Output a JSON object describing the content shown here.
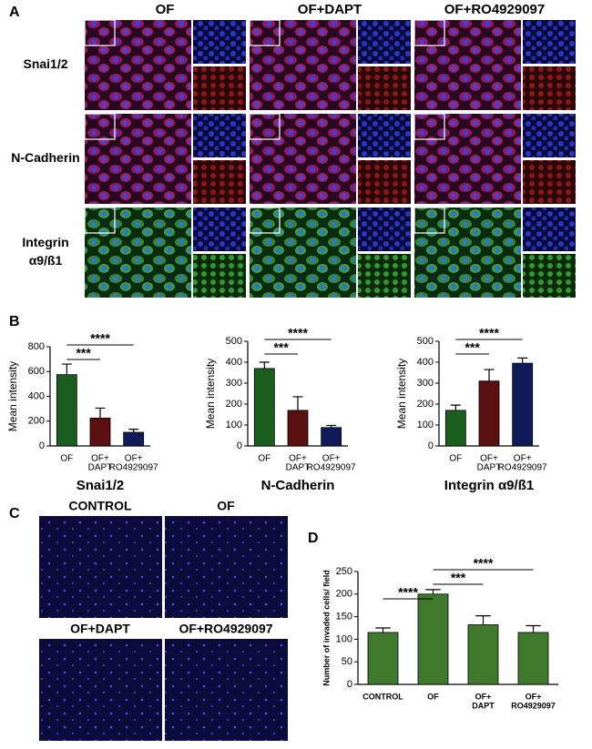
{
  "panels": {
    "a": {
      "label": "A",
      "columns": [
        "OF",
        "OF+DAPT",
        "OF+RO4929097"
      ],
      "rows": [
        [
          "Snai1/2"
        ],
        [
          "N-Cadherin"
        ],
        [
          "Integrin",
          "α9/ß1"
        ]
      ]
    },
    "b": {
      "label": "B"
    },
    "c": {
      "label": "C",
      "images": [
        "CONTROL",
        "OF",
        "OF+DAPT",
        "OF+RO4929097"
      ]
    },
    "d": {
      "label": "D"
    }
  },
  "chart_data": [
    {
      "type": "bar",
      "title": "Snai1/2",
      "ylabel": "Mean intensity",
      "categories": [
        [
          "OF"
        ],
        [
          "OF+",
          "DAPT"
        ],
        [
          "OF+",
          "RO4929097"
        ]
      ],
      "values": [
        575,
        225,
        110
      ],
      "errors": [
        85,
        80,
        25
      ],
      "colors": [
        "#1b5e20",
        "#5b1010",
        "#101c5a"
      ],
      "ylim": [
        0,
        800
      ],
      "yticks": [
        0,
        200,
        400,
        600,
        800
      ],
      "annotations": [
        {
          "label": "****",
          "between": [
            0,
            2
          ]
        },
        {
          "label": "***",
          "between": [
            0,
            1
          ]
        }
      ]
    },
    {
      "type": "bar",
      "title": "N-Cadherin",
      "ylabel": "Mean intensity",
      "categories": [
        [
          "OF"
        ],
        [
          "OF+",
          "DAPT"
        ],
        [
          "OF+",
          "RO4929097"
        ]
      ],
      "values": [
        370,
        170,
        88
      ],
      "errors": [
        30,
        65,
        10
      ],
      "colors": [
        "#1b5e20",
        "#5b1010",
        "#101c5a"
      ],
      "ylim": [
        0,
        500
      ],
      "yticks": [
        0,
        100,
        200,
        300,
        400,
        500
      ],
      "annotations": [
        {
          "label": "****",
          "between": [
            0,
            2
          ]
        },
        {
          "label": "***",
          "between": [
            0,
            1
          ]
        }
      ]
    },
    {
      "type": "bar",
      "title": "Integrin α9/ß1",
      "ylabel": "Mean intensity",
      "categories": [
        [
          "OF"
        ],
        [
          "OF+",
          "DAPT"
        ],
        [
          "OF+",
          "RO4929097"
        ]
      ],
      "values": [
        170,
        310,
        395
      ],
      "errors": [
        25,
        55,
        25
      ],
      "colors": [
        "#1b5e20",
        "#5b1010",
        "#101c5a"
      ],
      "ylim": [
        0,
        500
      ],
      "yticks": [
        0,
        100,
        200,
        300,
        400,
        500
      ],
      "annotations": [
        {
          "label": "****",
          "between": [
            0,
            2
          ]
        },
        {
          "label": "***",
          "between": [
            0,
            1
          ]
        }
      ]
    },
    {
      "type": "bar",
      "ylabel": "Number of invaded cells/ field",
      "categories": [
        [
          "CONTROL"
        ],
        [
          "OF"
        ],
        [
          "OF+",
          "DAPT"
        ],
        [
          "OF+",
          "RO4929097"
        ]
      ],
      "values": [
        115,
        200,
        132,
        115
      ],
      "errors": [
        10,
        10,
        20,
        15
      ],
      "colors": [
        "#3f7a2c",
        "#3f7a2c",
        "#3f7a2c",
        "#3f7a2c"
      ],
      "ylim": [
        0,
        250
      ],
      "yticks": [
        0,
        50,
        100,
        150,
        200,
        250
      ],
      "annotations": [
        {
          "label": "****",
          "between": [
            1,
            3
          ]
        },
        {
          "label": "***",
          "between": [
            1,
            2
          ]
        },
        {
          "label": "****",
          "between": [
            0,
            1
          ]
        }
      ]
    }
  ]
}
